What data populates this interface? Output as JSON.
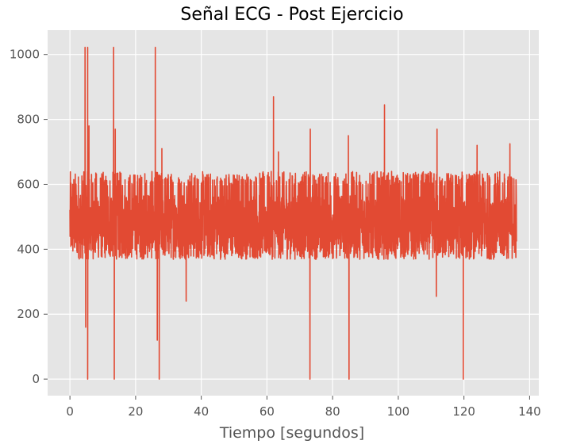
{
  "chart_data": {
    "type": "line",
    "title": "Señal ECG - Post Ejercicio",
    "xlabel": "Tiempo [segundos]",
    "ylabel": "",
    "xlim": [
      -6.8,
      142.8
    ],
    "ylim": [
      -51,
      1075
    ],
    "xticks": [
      0,
      20,
      40,
      60,
      80,
      100,
      120,
      140
    ],
    "yticks": [
      0,
      200,
      400,
      600,
      800,
      1000
    ],
    "grid": true,
    "legend": "none",
    "colors": {
      "line": "#E24A33",
      "plot_bg": "#E5E5E5",
      "grid": "#FFFFFF",
      "tick_text": "#555555"
    },
    "series": [
      {
        "x_start": 0,
        "x_end": 136,
        "baseline_range": [
          330,
          640
        ],
        "peaks": [
          [
            4.6,
            1022
          ],
          [
            5.4,
            1022
          ],
          [
            5.8,
            780
          ],
          [
            13.3,
            1022
          ],
          [
            13.8,
            770
          ],
          [
            26.0,
            1022
          ],
          [
            28.0,
            710
          ],
          [
            62.0,
            870
          ],
          [
            63.5,
            700
          ],
          [
            73.2,
            770
          ],
          [
            84.8,
            750
          ],
          [
            95.8,
            845
          ],
          [
            111.8,
            770
          ],
          [
            124.0,
            720
          ],
          [
            134.0,
            725
          ]
        ],
        "dips": [
          [
            4.8,
            160
          ],
          [
            5.4,
            0
          ],
          [
            13.5,
            0
          ],
          [
            26.6,
            120
          ],
          [
            27.2,
            0
          ],
          [
            35.4,
            240
          ],
          [
            73.1,
            0
          ],
          [
            85.0,
            0
          ],
          [
            111.6,
            255
          ],
          [
            119.8,
            0
          ]
        ]
      }
    ]
  }
}
